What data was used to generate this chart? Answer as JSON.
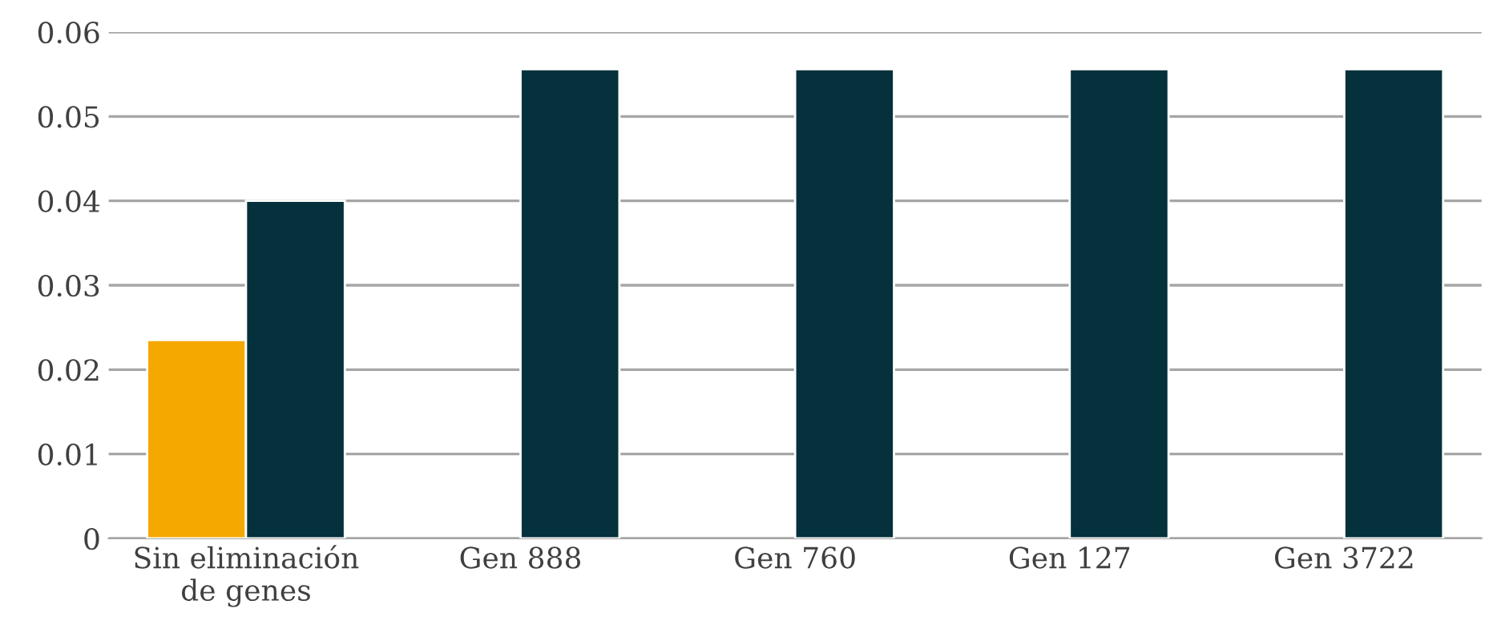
{
  "chart_data": {
    "type": "bar",
    "categories": [
      "Sin eliminación\nde genes",
      "Gen 888",
      "Gen 760",
      "Gen 127",
      "Gen 3722"
    ],
    "series": [
      {
        "color": "#f5a800",
        "values": [
          0.0235,
          null,
          null,
          null,
          null
        ]
      },
      {
        "color": "#04313b",
        "values": [
          0.04,
          0.0556,
          0.0556,
          0.0556,
          0.0556
        ]
      }
    ],
    "ylim": [
      0,
      0.06
    ],
    "yticks": [
      {
        "value": 0,
        "label": "0"
      },
      0.01,
      0.02,
      0.03,
      0.04,
      0.05,
      0.06
    ],
    "grid": "y",
    "legend": false
  }
}
